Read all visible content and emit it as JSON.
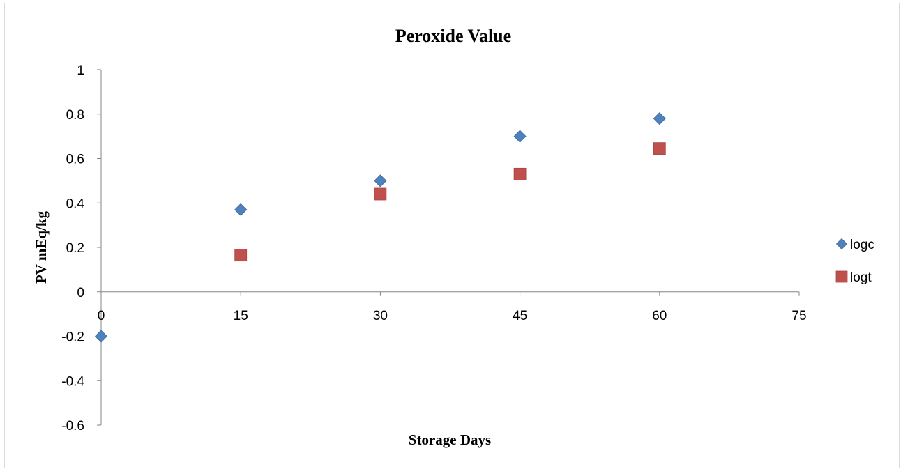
{
  "chart_data": {
    "type": "scatter",
    "title": "Peroxide Value",
    "xlabel": "Storage Days",
    "ylabel": "PV mEq/kg",
    "xlim": [
      0,
      75
    ],
    "ylim": [
      -0.6,
      1
    ],
    "xticks": [
      0,
      15,
      30,
      45,
      60,
      75
    ],
    "yticks": [
      -0.6,
      -0.4,
      -0.2,
      0,
      0.2,
      0.4,
      0.6,
      0.8,
      1
    ],
    "grid": false,
    "legend_position": "right",
    "series": [
      {
        "name": "logc",
        "marker": "diamond",
        "color": "#4f81bd",
        "x": [
          0,
          15,
          30,
          45,
          60
        ],
        "y": [
          -0.2,
          0.37,
          0.5,
          0.7,
          0.78
        ]
      },
      {
        "name": "logt",
        "marker": "square",
        "color": "#c0504d",
        "x": [
          15,
          30,
          45,
          60
        ],
        "y": [
          0.165,
          0.44,
          0.53,
          0.645
        ]
      }
    ]
  }
}
